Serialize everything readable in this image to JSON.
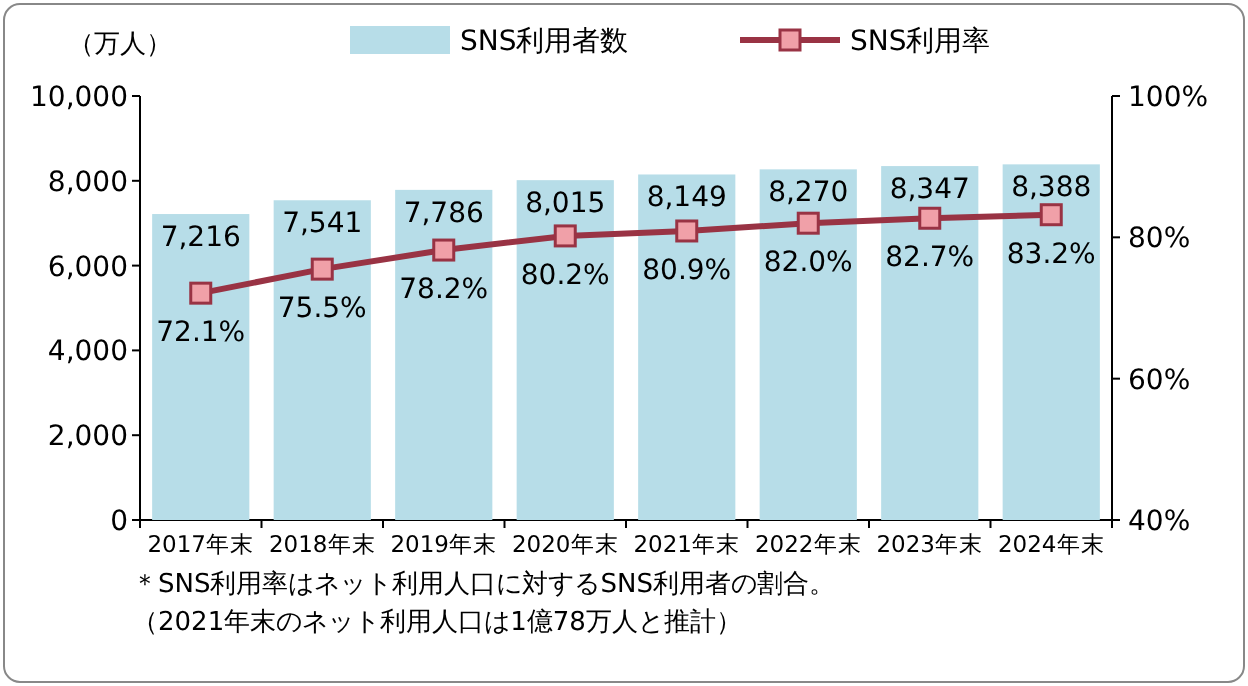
{
  "chart_data": {
    "type": "bar",
    "ylabel": "（万人）",
    "categories": [
      "2017年末",
      "2018年末",
      "2019年末",
      "2020年末",
      "2021年末",
      "2022年末",
      "2023年末",
      "2024年末"
    ],
    "series": [
      {
        "name": "SNS利用者数",
        "color": "#b7dde8",
        "values": [
          7216,
          7541,
          7786,
          8015,
          8149,
          8270,
          8347,
          8388
        ],
        "value_labels": [
          "7,216",
          "7,541",
          "7,786",
          "8,015",
          "8,149",
          "8,270",
          "8,347",
          "8,388"
        ]
      },
      {
        "name": "SNS利用率",
        "type": "line",
        "axis": "y2",
        "color": "#993344",
        "marker": "square",
        "values": [
          72.1,
          75.5,
          78.2,
          80.2,
          80.9,
          82.0,
          82.7,
          83.2
        ],
        "value_labels": [
          "72.1%",
          "75.5%",
          "78.2%",
          "80.2%",
          "80.9%",
          "82.0%",
          "82.7%",
          "83.2%"
        ]
      }
    ],
    "ylim": [
      0,
      10000
    ],
    "yticks": [
      {
        "value": 0,
        "label": "0"
      },
      {
        "value": 2000,
        "label": "2,000"
      },
      {
        "value": 4000,
        "label": "4,000"
      },
      {
        "value": 6000,
        "label": "6,000"
      },
      {
        "value": 8000,
        "label": "8,000"
      },
      {
        "value": 10000,
        "label": "10,000"
      }
    ],
    "y2lim": [
      40,
      100
    ],
    "y2ticks": [
      {
        "value": 40,
        "label": "40%"
      },
      {
        "value": 60,
        "label": "60%"
      },
      {
        "value": 80,
        "label": "80%"
      },
      {
        "value": 100,
        "label": "100%"
      }
    ],
    "legend": "top",
    "annotations": [
      "＊SNS利用率はネット利用人口に対するSNS利用者の割合。",
      "（2021年末のネット利用人口は1億78万人と推計）"
    ]
  }
}
